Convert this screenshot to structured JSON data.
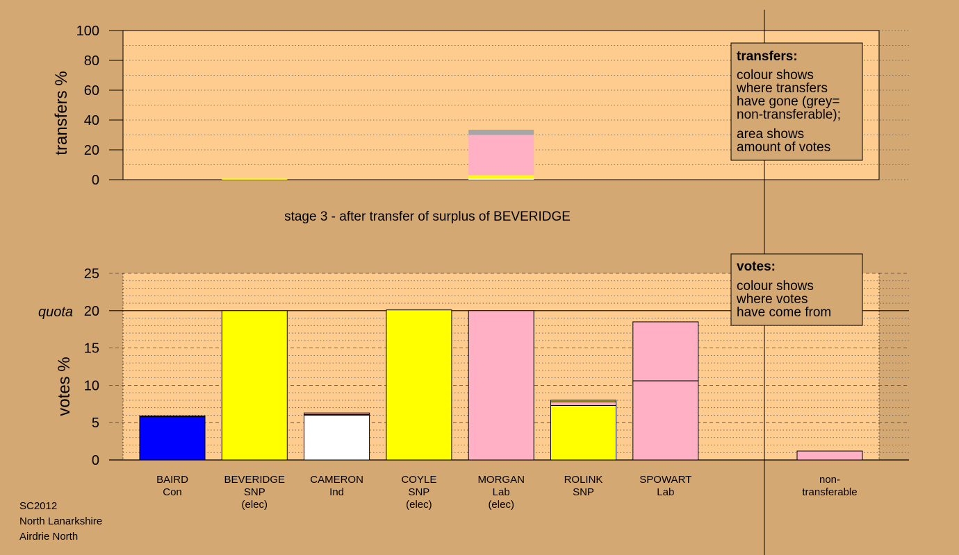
{
  "meta": [
    "SC2012",
    "North Lanarkshire",
    "Airdrie North"
  ],
  "stage_title": "stage 3 - after transfer of surplus of BEVERIDGE",
  "colors": {
    "background": "#D4A873",
    "plot": "#FFCC8F",
    "SNP": "#FFFF00",
    "Lab": "#FFB0C4",
    "Con": "#0000FF",
    "Ind": "#FFFFFF",
    "non_transferable": "#A6A6A6"
  },
  "transfers_legend": {
    "title": "transfers:",
    "line1": "colour shows",
    "line2": "where transfers",
    "line3": "have gone (grey=",
    "line4": "non-transferable);",
    "line5": "area shows",
    "line6": "amount of votes"
  },
  "votes_legend": {
    "title": "votes:",
    "line1": "colour shows",
    "line2": "where votes",
    "line3": "have come from"
  },
  "chart_data": [
    {
      "type": "bar",
      "name": "transfers",
      "ylabel": "transfers %",
      "ylim": [
        0,
        100
      ],
      "yticks": [
        0,
        20,
        40,
        60,
        80,
        100
      ],
      "grid": true,
      "bars": [
        {
          "index": 1,
          "segments": [
            {
              "color": "SNP",
              "value": 1
            }
          ]
        },
        {
          "index": 4,
          "segments": [
            {
              "color": "Ind",
              "value": 1
            },
            {
              "color": "SNP",
              "value": 2
            },
            {
              "color": "Lab",
              "value": 27
            },
            {
              "color": "non_transferable",
              "value": 3.5
            }
          ]
        }
      ]
    },
    {
      "type": "bar",
      "name": "votes",
      "ylabel": "votes %",
      "ylim": [
        0,
        25
      ],
      "yticks": [
        0,
        5,
        10,
        15,
        20,
        25
      ],
      "quota": 20,
      "quota_label": "quota",
      "grid": true,
      "candidates": [
        {
          "name": "BAIRD",
          "party": "Con",
          "note": "",
          "segments": [
            {
              "color": "Con",
              "value": 5.8
            },
            {
              "color": "Con",
              "value": 0.1
            }
          ]
        },
        {
          "name": "BEVERIDGE",
          "party": "SNP",
          "note": "(elec)",
          "segments": [
            {
              "color": "SNP",
              "value": 20
            }
          ]
        },
        {
          "name": "CAMERON",
          "party": "Ind",
          "note": "",
          "segments": [
            {
              "color": "Ind",
              "value": 6.0
            },
            {
              "color": "SNP",
              "value": 0.1
            },
            {
              "color": "Lab",
              "value": 0.2
            }
          ]
        },
        {
          "name": "COYLE",
          "party": "SNP",
          "note": "(elec)",
          "segments": [
            {
              "color": "SNP",
              "value": 20.1
            }
          ]
        },
        {
          "name": "MORGAN",
          "party": "Lab",
          "note": "(elec)",
          "segments": [
            {
              "color": "Lab",
              "value": 20
            }
          ]
        },
        {
          "name": "ROLINK",
          "party": "SNP",
          "note": "",
          "segments": [
            {
              "color": "SNP",
              "value": 7.3
            },
            {
              "color": "Lab",
              "value": 0.5
            },
            {
              "color": "SNP",
              "value": 0.2
            }
          ]
        },
        {
          "name": "SPOWART",
          "party": "Lab",
          "note": "",
          "segments": [
            {
              "color": "Lab",
              "value": 10.6
            },
            {
              "color": "Lab",
              "value": 7.9
            }
          ]
        },
        {
          "name": "non-",
          "party": "transferable",
          "note": "",
          "nontransferable": true,
          "segments": [
            {
              "color": "Lab",
              "value": 1.2
            }
          ]
        }
      ]
    }
  ]
}
